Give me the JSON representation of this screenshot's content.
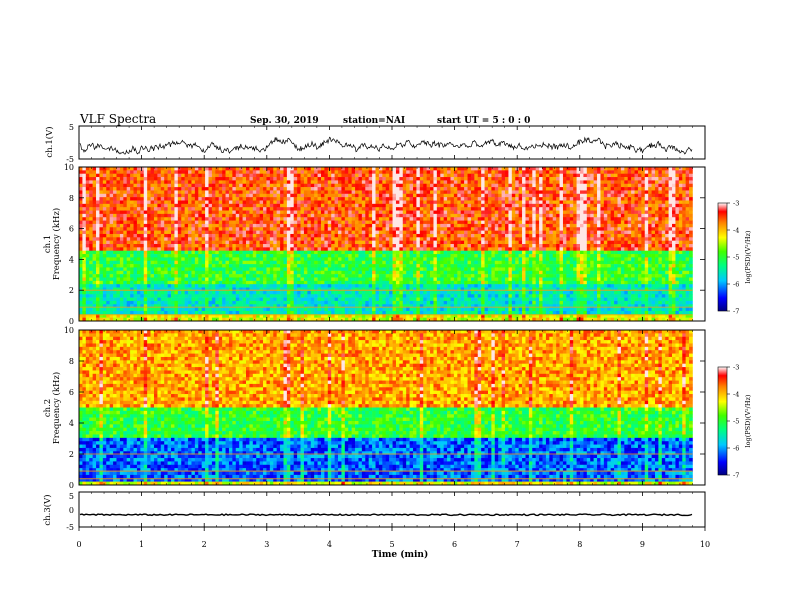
{
  "header": {
    "title": "VLF Spectra",
    "date": "Sep. 30, 2019",
    "station": "station=NAI",
    "start_ut": "start  UT =   5 : 0  : 0"
  },
  "chart_data": [
    {
      "type": "line",
      "panel": "ch1-waveform",
      "ylabel": "ch.1(V)",
      "ylim": [
        -5,
        5
      ],
      "yticks": [
        "5",
        "-5"
      ],
      "x_range_min": [
        0,
        9.8
      ],
      "note_values": "noisy waveform fluctuating roughly between -3 and 1 V",
      "color": "#000000"
    },
    {
      "type": "heatmap",
      "panel": "ch1-spectrogram",
      "ylabel_line1": "ch.1",
      "ylabel_line2": "Frequency (kHz)",
      "ylim": [
        0,
        10
      ],
      "yticks": [
        "0",
        "2",
        "4",
        "6",
        "8",
        "10"
      ],
      "x_range_min": [
        0,
        9.8
      ],
      "colorbar": {
        "label": "log(PSD)(V²/Hz)",
        "range": [
          -7,
          -3
        ],
        "ticks": [
          "-3",
          "-4",
          "-5",
          "-6",
          "-7"
        ]
      },
      "bands": [
        {
          "from_khz": 4.5,
          "to_khz": 10,
          "level": -3.5
        },
        {
          "from_khz": 2.5,
          "to_khz": 4.5,
          "level": -5.0
        },
        {
          "from_khz": 0.5,
          "to_khz": 2.5,
          "level": -5.6
        }
      ]
    },
    {
      "type": "heatmap",
      "panel": "ch2-spectrogram",
      "ylabel_line1": "ch.2",
      "ylabel_line2": "Frequency (kHz)",
      "ylim": [
        0,
        10
      ],
      "yticks": [
        "0",
        "2",
        "4",
        "6",
        "8",
        "10"
      ],
      "x_range_min": [
        0,
        9.8
      ],
      "colorbar": {
        "label": "log(PSD)(V²/Hz)",
        "range": [
          -7,
          -3
        ],
        "ticks": [
          "-3",
          "-4",
          "-5",
          "-6",
          "-7"
        ]
      },
      "bands": [
        {
          "from_khz": 5,
          "to_khz": 10,
          "level": -3.9
        },
        {
          "from_khz": 3,
          "to_khz": 5,
          "level": -5.0
        },
        {
          "from_khz": 0.3,
          "to_khz": 3,
          "level": -6.2
        }
      ]
    },
    {
      "type": "line",
      "panel": "ch3-waveform",
      "ylabel": "ch.3(V)",
      "ylim": [
        -5,
        5
      ],
      "yticks": [
        "5",
        "0",
        "-5"
      ],
      "x_range_min": [
        0,
        9.8
      ],
      "note_values": "flat trace near -1.5 V",
      "color": "#000000"
    }
  ],
  "xaxis": {
    "label": "Time (min)",
    "ticks": [
      "0",
      "1",
      "2",
      "3",
      "4",
      "5",
      "6",
      "7",
      "8",
      "9",
      "10"
    ],
    "range": [
      0,
      10
    ]
  }
}
